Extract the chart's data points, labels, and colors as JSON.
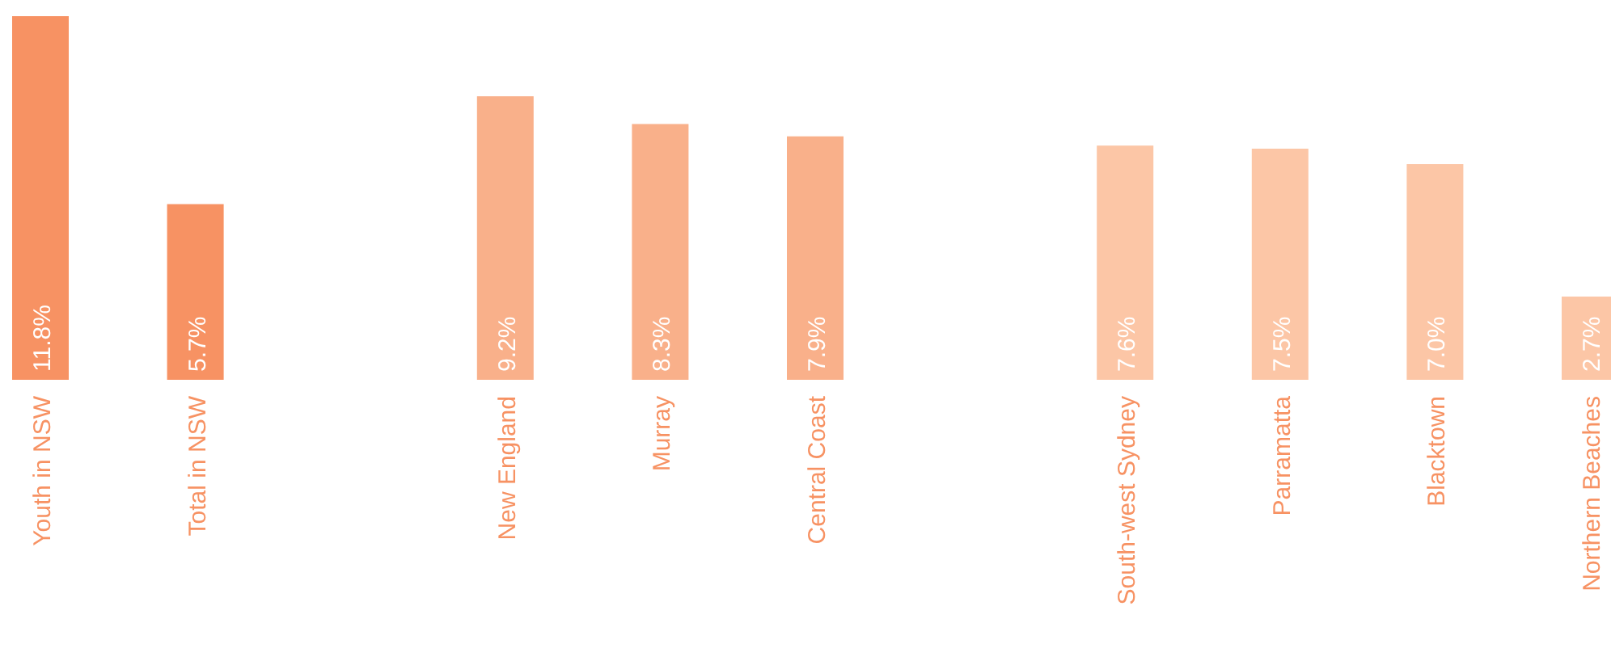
{
  "chart_data": {
    "type": "bar",
    "categories": [
      "Youth in NSW",
      "Total in NSW",
      null,
      "New England",
      "Murray",
      "Central Coast",
      null,
      "South-west Sydney",
      "Parramatta",
      "Blacktown",
      "Northern Beaches"
    ],
    "values": [
      11.8,
      5.7,
      null,
      9.2,
      8.3,
      7.9,
      null,
      7.6,
      7.5,
      7.0,
      2.7
    ],
    "colors": [
      "#f79263",
      "#f79263",
      null,
      "#f9b08a",
      "#f9b08a",
      "#f9b08a",
      null,
      "#fcc6a6",
      "#fcc6a6",
      "#fcc6a6",
      "#fcc6a6"
    ],
    "value_labels": [
      "11.8%",
      "5.7%",
      null,
      "9.2%",
      "8.3%",
      "7.9%",
      null,
      "7.6%",
      "7.5%",
      "7.0%",
      "2.7%"
    ]
  }
}
